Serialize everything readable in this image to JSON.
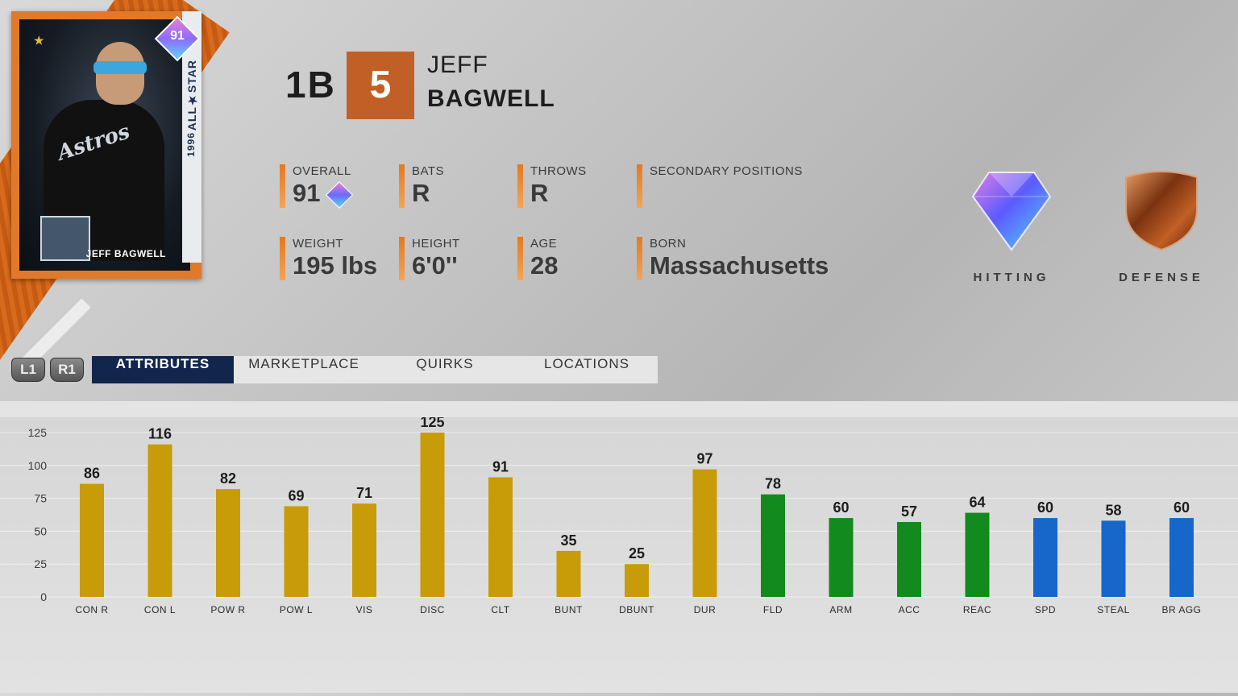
{
  "card": {
    "overall": "91",
    "badge_text": "ALL★STAR",
    "year": "1996",
    "name": "JEFF BAGWELL",
    "team_logo_text": "Astros",
    "star": "★"
  },
  "header": {
    "position": "1B",
    "jersey_number": "5",
    "first_name": "JEFF",
    "last_name": "BAGWELL"
  },
  "stats": [
    {
      "label": "OVERALL",
      "value": "91"
    },
    {
      "label": "BATS",
      "value": "R"
    },
    {
      "label": "THROWS",
      "value": "R"
    },
    {
      "label": "SECONDARY POSITIONS",
      "value": ""
    },
    {
      "label": "WEIGHT",
      "value": "195 lbs"
    },
    {
      "label": "HEIGHT",
      "value": "6'0''"
    },
    {
      "label": "AGE",
      "value": "28"
    },
    {
      "label": "BORN",
      "value": "Massachusetts"
    }
  ],
  "ratings": {
    "hitting_label": "HITTING",
    "defense_label": "DEFENSE"
  },
  "controls": {
    "l1": "L1",
    "r1": "R1"
  },
  "tabs": [
    {
      "label": "ATTRIBUTES",
      "active": true
    },
    {
      "label": "MARKETPLACE",
      "active": false
    },
    {
      "label": "QUIRKS",
      "active": false
    },
    {
      "label": "LOCATIONS",
      "active": false
    }
  ],
  "colors": {
    "hitting": "#c89b09",
    "fielding": "#138a1e",
    "running": "#1667c9",
    "accent_orange": "#c25f26",
    "tab_active": "#12264d"
  },
  "chart_data": {
    "type": "bar",
    "categories": [
      "CON R",
      "CON L",
      "POW R",
      "POW L",
      "VIS",
      "DISC",
      "CLT",
      "BUNT",
      "DBUNT",
      "DUR",
      "FLD",
      "ARM",
      "ACC",
      "REAC",
      "SPD",
      "STEAL",
      "BR AGG"
    ],
    "values": [
      86,
      116,
      82,
      69,
      71,
      125,
      91,
      35,
      25,
      97,
      78,
      60,
      57,
      64,
      60,
      58,
      60
    ],
    "groups": [
      "hitting",
      "hitting",
      "hitting",
      "hitting",
      "hitting",
      "hitting",
      "hitting",
      "hitting",
      "hitting",
      "hitting",
      "fielding",
      "fielding",
      "fielding",
      "fielding",
      "running",
      "running",
      "running"
    ],
    "ylim": [
      0,
      125
    ],
    "yticks": [
      "0",
      "25",
      "50",
      "75",
      "100",
      "125"
    ],
    "grid": true
  }
}
